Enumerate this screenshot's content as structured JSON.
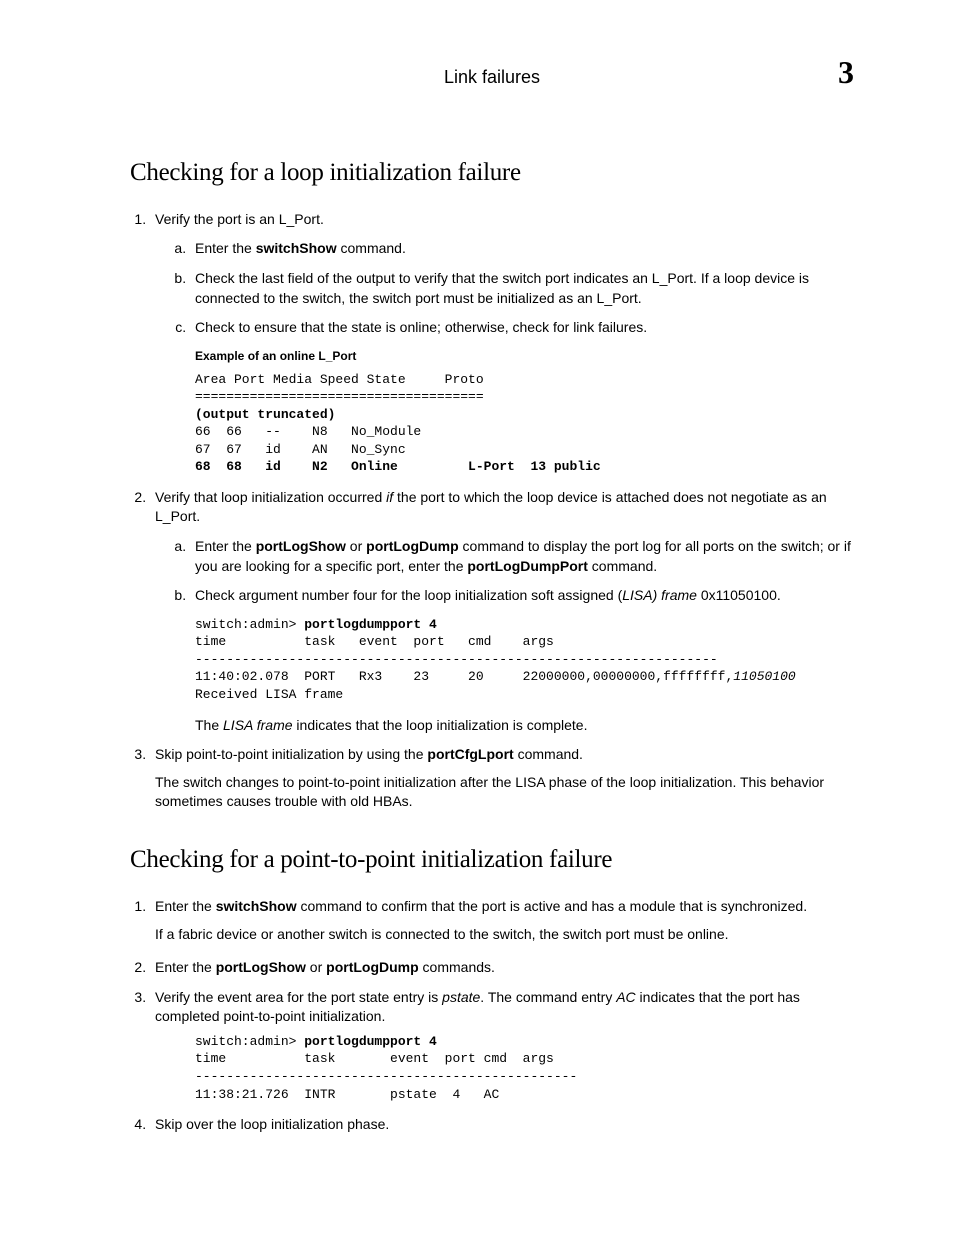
{
  "header": {
    "title": "Link failures",
    "chapter_number": "3"
  },
  "sections": {
    "loop": {
      "heading": "Checking for a loop initialization failure",
      "items": [
        {
          "text_pre": "Verify the port is an L_Port.",
          "sub": [
            {
              "pre": "Enter the ",
              "cmd": "switchShow",
              "post": " command."
            },
            {
              "pre": "Check the last field of the output to verify that the switch port indicates an L_Port. If a loop device is connected to the switch, the switch port must be initialized as an L_Port."
            },
            {
              "pre": "Check to ensure that the state is online; otherwise, check for link failures."
            }
          ],
          "example_label": "Example  of an online L_Port",
          "code": {
            "head": "Area Port Media Speed State     Proto\n=====================================",
            "trunc": "(output truncated)",
            "rows": "66  66   --    N8   No_Module\n67  67   id    AN   No_Sync",
            "bold_row": "68  68   id    N2   Online         L-Port  13 public"
          }
        },
        {
          "text_pre": "Verify that loop initialization occurred ",
          "text_italic": "if",
          "text_post": " the port to which the loop device is attached does not negotiate as an L_Port.",
          "sub": [
            {
              "pre": "Enter the ",
              "cmd": "portLogShow",
              "mid": " or ",
              "cmd2": "portLogDump",
              "post2": " command to display the port log for all ports on the switch; or if you are looking for a specific port, enter the ",
              "cmd3": "portLogDumpPort",
              "post3": " command."
            },
            {
              "pre": "Check argument number four for the loop initialization soft assigned (",
              "italic": "LISA) frame",
              "post": " 0x11050100."
            }
          ],
          "code": {
            "prompt": "switch:admin> ",
            "command": "portlogdumpport 4",
            "head": "time          task   event  port   cmd    args",
            "divider": "-------------------------------------------------------------------",
            "rows": "11:40:02.078  PORT   Rx3    23     20     22000000,00000000,ffffffff,",
            "italic_row": "11050100",
            "tail": "Received LISA frame"
          },
          "note_pre": "The ",
          "note_italic": "LISA frame",
          "note_post": " indicates that the loop initialization is complete."
        },
        {
          "text_pre": "Skip point-to-point initialization by using the ",
          "cmd": "portCfgLport",
          "text_post": " command.",
          "followup": "The switch changes to point-to-point initialization after the LISA phase of the loop initialization. This behavior sometimes causes trouble with old HBAs."
        }
      ]
    },
    "p2p": {
      "heading": "Checking for a point-to-point initialization failure",
      "items": [
        {
          "text_pre": "Enter the ",
          "cmd": "switchShow",
          "text_post": " command to confirm that the port is active and has a module that is synchronized.",
          "followup": "If a fabric device or another switch is connected to the switch, the switch port must be online."
        },
        {
          "text_pre": "Enter the ",
          "cmd": "portLogShow",
          "mid": " or ",
          "cmd2": "portLogDump",
          "text_post": " commands."
        },
        {
          "text_pre": "Verify the event area for the port state entry is ",
          "italic": "pstate",
          "text_mid": ". The command entry ",
          "italic2": "AC",
          "text_post": " indicates that the port has completed point-to-point initialization.",
          "code": {
            "prompt": "switch:admin> ",
            "command": "portlogdumpport 4",
            "head": "time          task       event  port cmd  args",
            "divider": "-------------------------------------------------",
            "rows": "11:38:21.726  INTR       pstate  4   AC"
          }
        },
        {
          "text_pre": "Skip over the loop initialization phase."
        }
      ]
    }
  }
}
